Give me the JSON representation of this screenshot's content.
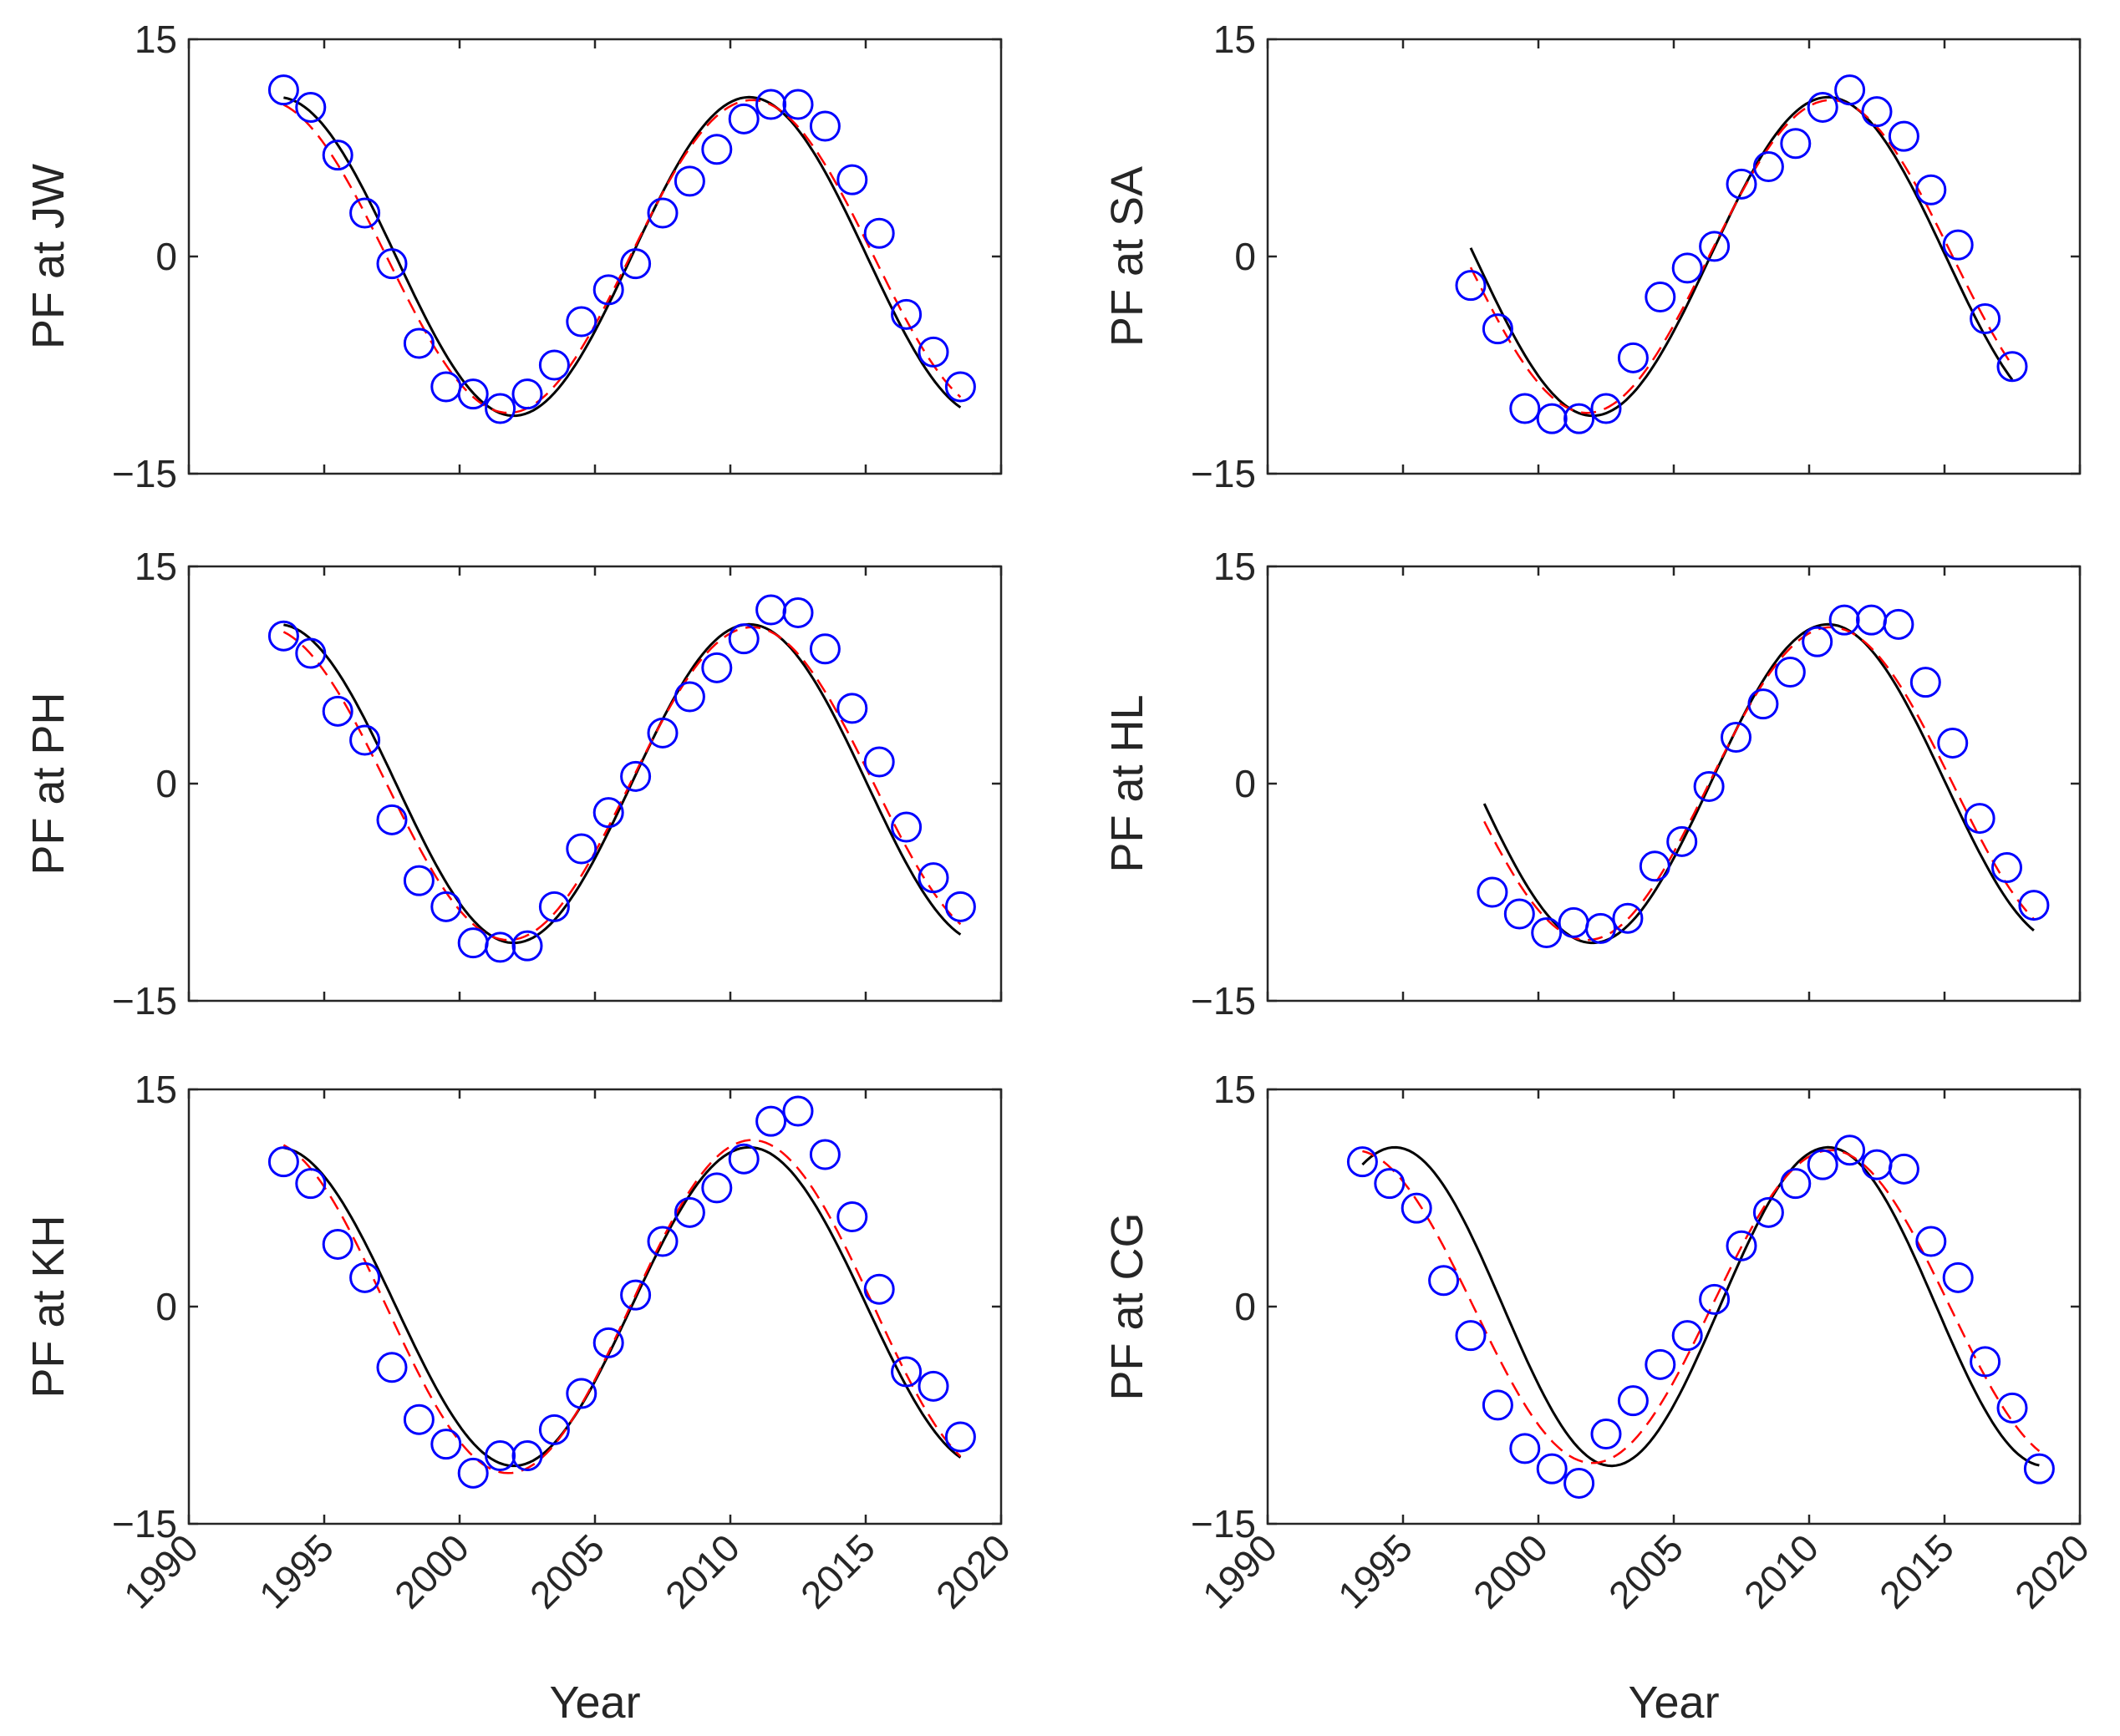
{
  "chart_data": {
    "type": "scatter",
    "layout": "3x2 subplot grid",
    "xlabel": "Year",
    "xlim": [
      1990,
      2020
    ],
    "xticks": [
      1990,
      1995,
      2000,
      2005,
      2010,
      2015,
      2020
    ],
    "ylim": [
      -15,
      15
    ],
    "yticks": [
      -15,
      0,
      15
    ],
    "ytick_labels": [
      "−15",
      "0",
      "15"
    ],
    "colors": {
      "observed": "#0000ff",
      "model_solid": "#000000",
      "model_dashed": "#ff0000"
    },
    "panels": [
      {
        "ylabel": "PF at JW",
        "observed": {
          "x": [
            1993.5,
            1994.5,
            1995.5,
            1996.5,
            1997.5,
            1998.5,
            1999.5,
            2000.5,
            2001.5,
            2002.5,
            2003.5,
            2004.5,
            2005.5,
            2006.5,
            2007.5,
            2008.5,
            2009.5,
            2010.5,
            2011.5,
            2012.5,
            2013.5,
            2014.5,
            2015.5,
            2016.5,
            2017.5,
            2018.5
          ],
          "y": [
            11.5,
            10.3,
            7.0,
            3.0,
            -0.5,
            -6.0,
            -9.0,
            -9.5,
            -10.5,
            -9.5,
            -7.5,
            -4.5,
            -2.3,
            -0.5,
            3.0,
            5.2,
            7.4,
            9.5,
            10.5,
            10.5,
            9.0,
            5.3,
            1.6,
            -4.0,
            -6.6,
            -9.0
          ]
        },
        "model_solid": {
          "x0": 1993.5,
          "x1": 2018.5,
          "a": 10,
          "b": 1,
          "x_min": 2002.0,
          "x_max": 2010.7
        },
        "model_dashed": {
          "x0": 1993.5,
          "x1": 2018.5,
          "a": 10.5,
          "b": 0.3,
          "x_min": 2001.8,
          "x_max": 2010.8
        }
      },
      {
        "ylabel": "PF at SA",
        "observed": {
          "x": [
            1997.5,
            1998.5,
            1999.5,
            2000.5,
            2001.5,
            2002.5,
            2003.5,
            2004.5,
            2005.5,
            2006.5,
            2007.5,
            2008.5,
            2009.5,
            2010.5,
            2011.5,
            2012.5,
            2013.5,
            2014.5,
            2015.5,
            2016.5,
            2017.5
          ],
          "y": [
            -2.0,
            -5.0,
            -10.5,
            -11.2,
            -11.2,
            -10.5,
            -7.0,
            -2.8,
            -0.8,
            0.7,
            5.0,
            6.2,
            7.8,
            10.3,
            11.5,
            10.0,
            8.3,
            4.6,
            0.8,
            -4.3,
            -7.6
          ]
        },
        "model_solid": {
          "x0": 1997.5,
          "x1": 2017.5,
          "a": 10,
          "b": 1,
          "x_min": 2002.0,
          "x_max": 2010.7
        },
        "model_dashed": {
          "x0": 1997.5,
          "x1": 2017.5,
          "a": 10.5,
          "b": 0.3,
          "x_min": 2001.8,
          "x_max": 2010.8
        }
      },
      {
        "ylabel": "PF at PH",
        "observed": {
          "x": [
            1993.5,
            1994.5,
            1995.5,
            1996.5,
            1997.5,
            1998.5,
            1999.5,
            2000.5,
            2001.5,
            2002.5,
            2003.5,
            2004.5,
            2005.5,
            2006.5,
            2007.5,
            2008.5,
            2009.5,
            2010.5,
            2011.5,
            2012.5,
            2013.5,
            2014.5,
            2015.5,
            2016.5,
            2017.5,
            2018.5
          ],
          "y": [
            10.2,
            9.0,
            5.0,
            3.0,
            -2.5,
            -6.7,
            -8.5,
            -11.0,
            -11.3,
            -11.2,
            -8.5,
            -4.5,
            -2.0,
            0.5,
            3.5,
            6.0,
            8.0,
            10.0,
            12.0,
            11.8,
            9.3,
            5.2,
            1.5,
            -3.0,
            -6.5,
            -8.5
          ]
        },
        "model_solid": {
          "x0": 1993.5,
          "x1": 2018.5,
          "a": 10,
          "b": 1,
          "x_min": 2002.0,
          "x_max": 2010.7
        },
        "model_dashed": {
          "x0": 1993.5,
          "x1": 2018.5,
          "a": 10.5,
          "b": 0.3,
          "x_min": 2001.8,
          "x_max": 2010.8
        }
      },
      {
        "ylabel": "PF at HL",
        "observed": {
          "x": [
            1998.3,
            1999.3,
            2000.3,
            2001.3,
            2002.3,
            2003.3,
            2004.3,
            2005.3,
            2006.3,
            2007.3,
            2008.3,
            2009.3,
            2010.3,
            2011.3,
            2012.3,
            2013.3,
            2014.3,
            2015.3,
            2016.3,
            2017.3,
            2018.3
          ],
          "y": [
            -7.5,
            -9.0,
            -10.3,
            -9.6,
            -10.0,
            -9.3,
            -5.7,
            -4.0,
            -0.2,
            3.2,
            5.5,
            7.7,
            9.8,
            11.3,
            11.3,
            11.0,
            7.0,
            2.8,
            -2.4,
            -5.8,
            -8.4
          ]
        },
        "model_solid": {
          "x0": 1998.0,
          "x1": 2018.3,
          "a": 10,
          "b": 1,
          "x_min": 2002.0,
          "x_max": 2010.7
        },
        "model_dashed": {
          "x0": 1998.0,
          "x1": 2018.3,
          "a": 10.5,
          "b": 0.3,
          "x_min": 2001.8,
          "x_max": 2010.8
        }
      },
      {
        "ylabel": "PF at KH",
        "observed": {
          "x": [
            1993.5,
            1994.5,
            1995.5,
            1996.5,
            1997.5,
            1998.5,
            1999.5,
            2000.5,
            2001.5,
            2002.5,
            2003.5,
            2004.5,
            2005.5,
            2006.5,
            2007.5,
            2008.5,
            2009.5,
            2010.5,
            2011.5,
            2012.5,
            2013.5,
            2014.5,
            2015.5,
            2016.5,
            2017.5,
            2018.5
          ],
          "y": [
            10.0,
            8.5,
            4.3,
            2.0,
            -4.2,
            -7.8,
            -9.5,
            -11.5,
            -10.3,
            -10.3,
            -8.5,
            -6.0,
            -2.5,
            0.8,
            4.5,
            6.5,
            8.2,
            10.2,
            12.8,
            13.5,
            10.5,
            6.2,
            1.2,
            -4.5,
            -5.5,
            -9.0
          ]
        },
        "model_solid": {
          "x0": 1993.5,
          "x1": 2018.5,
          "a": 10,
          "b": 1,
          "x_min": 2002.0,
          "x_max": 2010.7
        },
        "model_dashed": {
          "x0": 1993.5,
          "x1": 2018.5,
          "a": 11.5,
          "b": 0,
          "x_min": 2001.8,
          "x_max": 2010.8
        }
      },
      {
        "ylabel": "PF at CG",
        "observed": {
          "x": [
            1993.5,
            1994.5,
            1995.5,
            1996.5,
            1997.5,
            1998.5,
            1999.5,
            2000.5,
            2001.5,
            2002.5,
            2003.5,
            2004.5,
            2005.5,
            2006.5,
            2007.5,
            2008.5,
            2009.5,
            2010.5,
            2011.5,
            2012.5,
            2013.5,
            2014.5,
            2015.5,
            2016.5,
            2017.5,
            2018.5
          ],
          "y": [
            10.0,
            8.5,
            6.8,
            1.8,
            -2.0,
            -6.8,
            -9.8,
            -11.2,
            -12.2,
            -8.8,
            -6.5,
            -4.0,
            -2.0,
            0.5,
            4.2,
            6.5,
            8.5,
            9.8,
            10.8,
            9.8,
            9.5,
            4.5,
            2.0,
            -3.8,
            -7.0,
            -11.2
          ]
        },
        "model_solid": {
          "x0": 1993.5,
          "x1": 2018.5,
          "a": 10,
          "b": 1,
          "x_min": 2002.7,
          "x_max": 2010.7
        },
        "model_dashed": {
          "x0": 1993.5,
          "x1": 2018.5,
          "a": 10.5,
          "b": 0.3,
          "x_min": 2002.0,
          "x_max": 2010.8
        }
      }
    ]
  }
}
